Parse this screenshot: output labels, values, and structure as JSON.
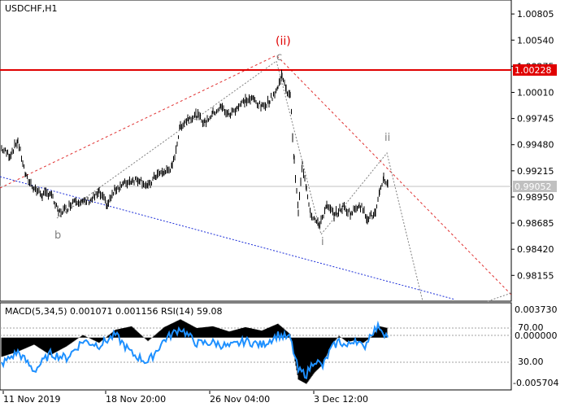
{
  "chart_data": [
    {
      "type": "line",
      "title": "USDCHF,H1",
      "ylim": [
        0.9791,
        1.0093
      ],
      "y_ticks": [
        "1.00805",
        "1.00540",
        "1.00275",
        "1.00010",
        "0.99745",
        "0.99480",
        "0.99215",
        "0.98950",
        "0.98685",
        "0.98420",
        "0.98155"
      ],
      "x_ticks": [
        "11 Nov 2019",
        "18 Nov 20:00",
        "26 Nov 04:00",
        "3 Dec 12:00"
      ],
      "series": [
        {
          "style": "bars-black",
          "x": [
            0,
            10,
            20,
            30,
            40,
            50,
            60,
            70,
            80,
            90,
            100,
            110,
            120,
            130,
            140,
            150,
            160,
            170,
            180,
            190,
            200,
            210,
            220,
            230,
            240,
            250,
            260,
            270,
            280,
            290,
            300,
            310,
            320,
            330,
            340,
            345,
            350,
            355,
            360,
            365,
            370,
            375,
            380,
            390,
            400,
            410,
            420,
            430,
            440,
            450,
            460,
            465,
            470,
            475
          ],
          "y": [
            0.9944,
            0.9937,
            0.9952,
            0.9915,
            0.9904,
            0.9897,
            0.9899,
            0.9879,
            0.9883,
            0.9893,
            0.9889,
            0.9892,
            0.9899,
            0.9887,
            0.9903,
            0.9908,
            0.9912,
            0.9913,
            0.9905,
            0.9917,
            0.992,
            0.9925,
            0.9967,
            0.9975,
            0.9978,
            0.997,
            0.998,
            0.9986,
            0.9978,
            0.9986,
            0.9993,
            0.9994,
            0.9986,
            0.9993,
            1.0006,
            1.002,
            1.0002,
            1.0,
            0.993,
            0.988,
            0.9928,
            0.9905,
            0.9879,
            0.9866,
            0.9885,
            0.9877,
            0.9885,
            0.9878,
            0.9888,
            0.9874,
            0.9878,
            0.9898,
            0.9915,
            0.9907
          ]
        }
      ],
      "horizontal_lines": [
        {
          "y": 1.00228,
          "label": "1.00228",
          "color": "#e00000"
        },
        {
          "y": 0.99052,
          "label": "0.99052",
          "color": "#c0c0c0"
        }
      ],
      "wave_labels": [
        "(ii)",
        "c",
        "b",
        "i",
        "ii"
      ]
    },
    {
      "type": "line",
      "title": "MACD(5,34,5) 0.001071 0.001156 RSI(14) 59.08",
      "ylim": [
        -0.0058,
        0.0038
      ],
      "y_ticks": [
        "0.003730",
        "0.000000",
        "-0.005704"
      ],
      "rsi_levels": [
        "70.00",
        "30.00"
      ],
      "series": [
        {
          "name": "MACD",
          "x": [
            0,
            20,
            40,
            60,
            80,
            100,
            120,
            140,
            160,
            180,
            200,
            220,
            240,
            260,
            280,
            300,
            320,
            340,
            355,
            365,
            375,
            385,
            395,
            405,
            415,
            425,
            435,
            445,
            455,
            465,
            475
          ],
          "y": [
            -0.0022,
            -0.0016,
            -0.0008,
            -0.002,
            -0.001,
            0.0003,
            -0.0006,
            0.0009,
            0.0013,
            -0.0004,
            0.0012,
            0.0021,
            0.0011,
            0.0013,
            0.0007,
            0.0012,
            0.0008,
            0.0016,
            0.0004,
            -0.0048,
            -0.0053,
            -0.004,
            -0.0031,
            -0.001,
            0.0002,
            -0.0005,
            -0.0003,
            -0.0006,
            0.0001,
            0.0013,
            0.0011
          ]
        },
        {
          "name": "RSI",
          "x": [
            0,
            20,
            40,
            60,
            80,
            100,
            120,
            140,
            160,
            180,
            200,
            220,
            240,
            260,
            280,
            300,
            320,
            340,
            355,
            365,
            375,
            385,
            395,
            405,
            415,
            425,
            435,
            445,
            455,
            465,
            475
          ],
          "y": [
            28,
            42,
            20,
            40,
            35,
            55,
            50,
            62,
            40,
            30,
            56,
            70,
            52,
            53,
            48,
            55,
            50,
            62,
            58,
            20,
            16,
            33,
            25,
            45,
            55,
            48,
            58,
            46,
            65,
            72,
            59
          ]
        }
      ]
    }
  ]
}
